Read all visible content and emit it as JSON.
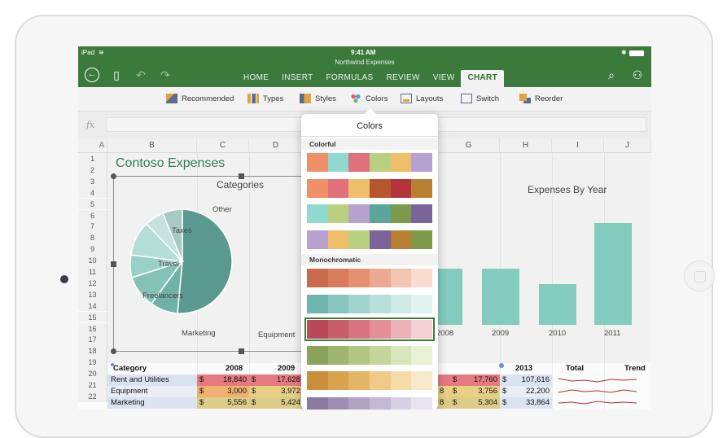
{
  "status": {
    "left": "iPad",
    "time": "9:41 AM"
  },
  "app": {
    "title": "Northwind Expenses"
  },
  "tabs": [
    {
      "label": "HOME",
      "active": false
    },
    {
      "label": "INSERT",
      "active": false
    },
    {
      "label": "FORMULAS",
      "active": false
    },
    {
      "label": "REVIEW",
      "active": false
    },
    {
      "label": "VIEW",
      "active": false
    },
    {
      "label": "CHART",
      "active": true
    }
  ],
  "ribbon": [
    {
      "label": "Recommended",
      "icon": "recommended-chart-icon"
    },
    {
      "label": "Types",
      "icon": "bar-chart-icon"
    },
    {
      "label": "Styles",
      "icon": "styles-icon"
    },
    {
      "label": "Colors",
      "icon": "palette-icon"
    },
    {
      "label": "Layouts",
      "icon": "layouts-icon"
    },
    {
      "label": "Switch",
      "icon": "switch-icon"
    },
    {
      "label": "Reorder",
      "icon": "reorder-icon"
    }
  ],
  "formula_bar": {
    "fx": "fx",
    "value": ""
  },
  "columns": [
    "A",
    "B",
    "C",
    "D",
    "",
    "",
    "G",
    "H",
    "I",
    "J"
  ],
  "rows": [
    "1",
    "2",
    "3",
    "4",
    "5",
    "6",
    "7",
    "8",
    "9",
    "10",
    "11",
    "12",
    "13",
    "14",
    "15",
    "16",
    "17",
    "18",
    "19",
    "20",
    "21",
    "22"
  ],
  "sheet_title": "Contoso Expenses",
  "pie_chart": {
    "title": "Categories",
    "labels": [
      "Other",
      "Taxes",
      "Travel",
      "Freelancers",
      "Marketing",
      "Equipment"
    ]
  },
  "bar_chart": {
    "title": "Expenses By Year",
    "x_labels": [
      "2008",
      "2009",
      "2010",
      "2011"
    ]
  },
  "colors_popover": {
    "title": "Colors",
    "sections": [
      {
        "name": "Colorful",
        "palettes": [
          [
            "#ef9069",
            "#8fd9d0",
            "#e0707a",
            "#b8d07f",
            "#efbe6a",
            "#b7a2cf"
          ],
          [
            "#ef9069",
            "#e0707a",
            "#efbe6a",
            "#b5562f",
            "#b3333a",
            "#b88033"
          ],
          [
            "#8fd9d0",
            "#b8d07f",
            "#b7a2cf",
            "#5aa69a",
            "#7d9a4a",
            "#7a6499"
          ],
          [
            "#b7a2cf",
            "#efbe6a",
            "#b8d07f",
            "#7a6499",
            "#b88033",
            "#7d9a4a"
          ]
        ]
      },
      {
        "name": "Monochromatic",
        "palettes": [
          [
            "#c96a4c",
            "#d97c5c",
            "#e59070",
            "#eeaa90",
            "#f4c4b2",
            "#f8dcd2"
          ],
          [
            "#6fb5ad",
            "#86c6be",
            "#a0d4cd",
            "#b8e0da",
            "#cdeae6",
            "#e0f3f0"
          ],
          [
            "#b84a58",
            "#c95e6b",
            "#d8737f",
            "#e48f98",
            "#eeb1b7",
            "#f5d0d3"
          ],
          [
            "#8aa35a",
            "#9db66c",
            "#b1c681",
            "#c5d69c",
            "#d8e5ba",
            "#e8f0d6"
          ],
          [
            "#c98f3c",
            "#d9a24e",
            "#e5b566",
            "#efc985",
            "#f5dba8",
            "#f9e9cb"
          ],
          [
            "#8a7aa0",
            "#9d8db3",
            "#b1a3c4",
            "#c4b9d5",
            "#d7cfe3",
            "#e8e3f0"
          ]
        ]
      }
    ],
    "selected": "Monochromatic-2"
  },
  "table": {
    "headers": [
      "Category",
      "2008",
      "2009",
      "2013",
      "Total",
      "Trend"
    ],
    "rows": [
      {
        "category": "Rent and Utilities",
        "v2008": "18,840",
        "v2009": "17,628",
        "v2013": "17,760",
        "total": "107,616"
      },
      {
        "category": "Equipment",
        "v2008": "3,000",
        "v2009": "3,972",
        "v2013": "3,756",
        "total": "22,200"
      },
      {
        "category": "Marketing",
        "v2008": "5,556",
        "v2009": "5,424",
        "v2013": "5,304",
        "total": "33,864"
      }
    ],
    "currency": "$",
    "partial_left": [
      "$",
      "$",
      "$"
    ],
    "partial_left_vals": [
      "",
      "8",
      "8"
    ]
  },
  "colors": {
    "accent": "#3c7a3b",
    "pie": "#5a9a8e",
    "bar": "#6fc4b4"
  }
}
